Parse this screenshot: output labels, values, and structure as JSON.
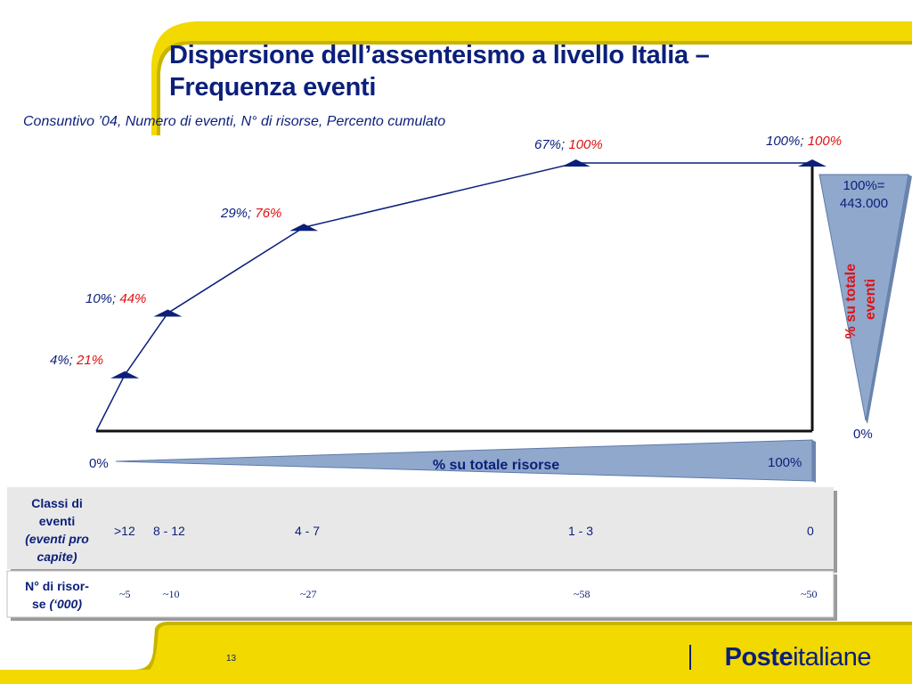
{
  "slide": {
    "title_line1": "Dispersione dell’assenteismo a livello Italia –",
    "title_line2": "Frequenza eventi",
    "subtitle": "Consuntivo ’04, Numero di eventi, N° di risorse, Percento cumulato",
    "page_number": "13",
    "logo_bold": "Poste",
    "logo_regular": "italiane"
  },
  "colors": {
    "yellow": "#f2d900",
    "navy": "#0b1f7a",
    "red": "#e01010",
    "wedge": "#8fa8cc"
  },
  "chart_data": {
    "type": "line",
    "x_name": "% su totale risorse",
    "y_name": "% su totale eventi",
    "x_min_label": "0%",
    "x_max_label": "100%",
    "y_min_label": "0%",
    "y_max_label": "100%=\n443.000",
    "xlim": [
      0,
      100
    ],
    "ylim": [
      0,
      100
    ],
    "points": [
      {
        "x": 0,
        "y": 0
      },
      {
        "x": 4,
        "y": 21,
        "label_a": "4%;",
        "label_b": "21%"
      },
      {
        "x": 10,
        "y": 44,
        "label_a": "10%;",
        "label_b": "44%"
      },
      {
        "x": 29,
        "y": 76,
        "label_a": "29%;",
        "label_b": "76%"
      },
      {
        "x": 67,
        "y": 100,
        "label_a": "67%;",
        "label_b": "100%"
      },
      {
        "x": 100,
        "y": 100,
        "label_a": "100%;",
        "label_b": "100%"
      },
      {
        "x": 100,
        "y": 0
      }
    ]
  },
  "table": {
    "row1_header_line1": "Classi di",
    "row1_header_line2": "eventi",
    "row1_header_line3": "(eventi pro",
    "row1_header_line4": "capite)",
    "row1_values": [
      ">12",
      "8 - 12",
      "4 - 7",
      "1 - 3",
      "0"
    ],
    "row2_header_line1": "N° di risor-",
    "row2_header_line2": "se",
    "row2_header_line3": "(‘000)",
    "row2_values": [
      "~5",
      "~10",
      "~27",
      "~58",
      "~50"
    ]
  }
}
